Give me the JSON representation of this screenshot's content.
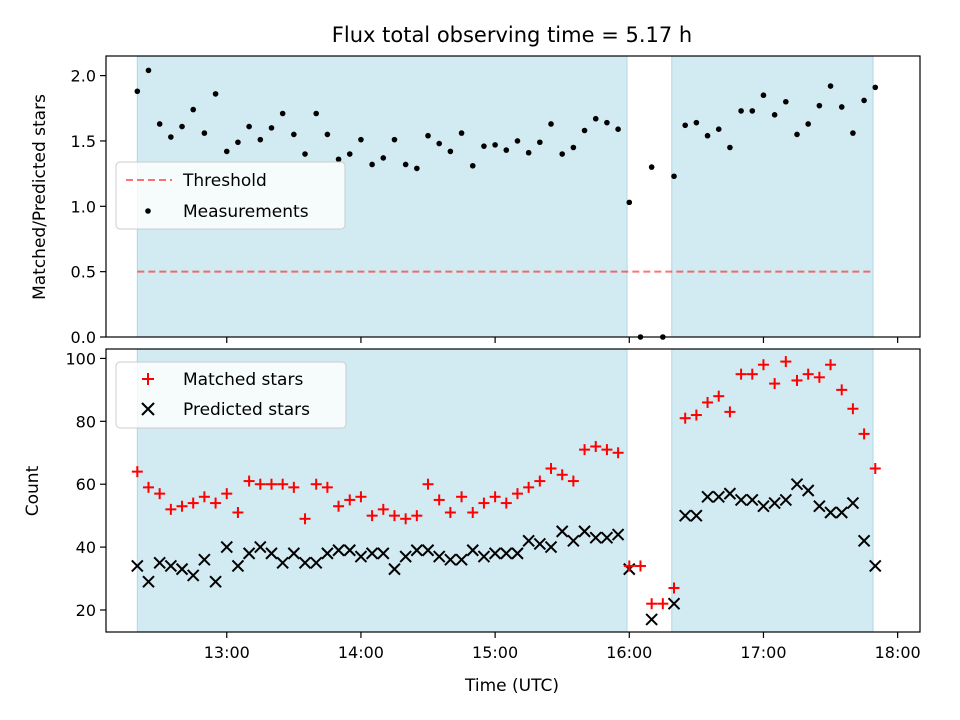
{
  "figure": {
    "title": "Flux total observing time = 5.17 h",
    "xlabel": "Time (UTC)"
  },
  "colors": {
    "observing_span": "#add8e6",
    "threshold": "#ff0000",
    "measurements": "#000000",
    "matched": "#ff0000",
    "predicted": "#000000"
  },
  "chart_data": [
    {
      "type": "scatter",
      "panel": "top",
      "ylabel": "Matched/Predicted stars",
      "xlim": [
        "12:06",
        "18:10"
      ],
      "ylim": [
        0,
        2.15
      ],
      "xticks": [
        "13:00",
        "14:00",
        "15:00",
        "16:00",
        "17:00",
        "18:00"
      ],
      "yticks": [
        "0.0",
        "0.5",
        "1.0",
        "1.5",
        "2.0"
      ],
      "spans": [
        [
          "12:20",
          "15:59"
        ],
        [
          "16:19",
          "17:49"
        ]
      ],
      "threshold": {
        "name": "Threshold",
        "value": 0.5,
        "x_range": [
          "12:20",
          "17:49"
        ]
      },
      "legend_position": "center-left",
      "series": [
        {
          "name": "Measurements",
          "marker": "dot",
          "x": [
            "12:20",
            "12:25",
            "12:30",
            "12:35",
            "12:40",
            "12:45",
            "12:50",
            "12:55",
            "13:00",
            "13:05",
            "13:10",
            "13:15",
            "13:20",
            "13:25",
            "13:30",
            "13:35",
            "13:40",
            "13:45",
            "13:50",
            "13:55",
            "14:00",
            "14:05",
            "14:10",
            "14:15",
            "14:20",
            "14:25",
            "14:30",
            "14:35",
            "14:40",
            "14:45",
            "14:50",
            "14:55",
            "15:00",
            "15:05",
            "15:10",
            "15:15",
            "15:20",
            "15:25",
            "15:30",
            "15:35",
            "15:40",
            "15:45",
            "15:50",
            "15:55",
            "16:00",
            "16:05",
            "16:10",
            "16:15",
            "16:20",
            "16:25",
            "16:30",
            "16:35",
            "16:40",
            "16:45",
            "16:50",
            "16:55",
            "17:00",
            "17:05",
            "17:10",
            "17:15",
            "17:20",
            "17:25",
            "17:30",
            "17:35",
            "17:40",
            "17:45",
            "17:50"
          ],
          "y": [
            1.88,
            2.04,
            1.63,
            1.53,
            1.61,
            1.74,
            1.56,
            1.86,
            1.42,
            1.49,
            1.61,
            1.51,
            1.6,
            1.71,
            1.55,
            1.4,
            1.71,
            1.55,
            1.36,
            1.4,
            1.51,
            1.32,
            1.37,
            1.51,
            1.32,
            1.29,
            1.54,
            1.48,
            1.42,
            1.56,
            1.31,
            1.46,
            1.47,
            1.43,
            1.5,
            1.41,
            1.49,
            1.63,
            1.4,
            1.45,
            1.58,
            1.67,
            1.64,
            1.59,
            1.03,
            0.0,
            1.3,
            0.0,
            1.23,
            1.62,
            1.64,
            1.54,
            1.59,
            1.45,
            1.73,
            1.73,
            1.85,
            1.7,
            1.8,
            1.55,
            1.63,
            1.77,
            1.92,
            1.76,
            1.56,
            1.81,
            1.91
          ]
        }
      ]
    },
    {
      "type": "scatter",
      "panel": "bottom",
      "ylabel": "Count",
      "xlim": [
        "12:06",
        "18:10"
      ],
      "ylim": [
        13,
        103
      ],
      "xticks": [
        "13:00",
        "14:00",
        "15:00",
        "16:00",
        "17:00",
        "18:00"
      ],
      "yticks": [
        "20",
        "40",
        "60",
        "80",
        "100"
      ],
      "spans": [
        [
          "12:20",
          "15:59"
        ],
        [
          "16:19",
          "17:49"
        ]
      ],
      "legend_position": "top-left",
      "x": [
        "12:20",
        "12:25",
        "12:30",
        "12:35",
        "12:40",
        "12:45",
        "12:50",
        "12:55",
        "13:00",
        "13:05",
        "13:10",
        "13:15",
        "13:20",
        "13:25",
        "13:30",
        "13:35",
        "13:40",
        "13:45",
        "13:50",
        "13:55",
        "14:00",
        "14:05",
        "14:10",
        "14:15",
        "14:20",
        "14:25",
        "14:30",
        "14:35",
        "14:40",
        "14:45",
        "14:50",
        "14:55",
        "15:00",
        "15:05",
        "15:10",
        "15:15",
        "15:20",
        "15:25",
        "15:30",
        "15:35",
        "15:40",
        "15:45",
        "15:50",
        "15:55",
        "16:00",
        "16:05",
        "16:10",
        "16:15",
        "16:20",
        "16:25",
        "16:30",
        "16:35",
        "16:40",
        "16:45",
        "16:50",
        "16:55",
        "17:00",
        "17:05",
        "17:10",
        "17:15",
        "17:20",
        "17:25",
        "17:30",
        "17:35",
        "17:40",
        "17:45",
        "17:50"
      ],
      "series": [
        {
          "name": "Matched stars",
          "marker": "plus",
          "y": [
            64,
            59,
            57,
            52,
            53,
            54,
            56,
            54,
            57,
            51,
            61,
            60,
            60,
            60,
            59,
            49,
            60,
            59,
            53,
            55,
            56,
            50,
            52,
            50,
            49,
            50,
            60,
            55,
            51,
            56,
            51,
            54,
            56,
            54,
            57,
            59,
            61,
            65,
            63,
            61,
            71,
            72,
            71,
            70,
            34,
            34,
            22,
            22,
            27,
            81,
            82,
            86,
            88,
            83,
            95,
            95,
            98,
            92,
            99,
            93,
            95,
            94,
            98,
            90,
            84,
            76,
            65
          ]
        },
        {
          "name": "Predicted stars",
          "marker": "x",
          "y": [
            34,
            29,
            35,
            34,
            33,
            31,
            36,
            29,
            40,
            34,
            38,
            40,
            38,
            35,
            38,
            35,
            35,
            38,
            39,
            39,
            37,
            38,
            38,
            33,
            37,
            39,
            39,
            37,
            36,
            36,
            39,
            37,
            38,
            38,
            38,
            42,
            41,
            40,
            45,
            42,
            45,
            43,
            43,
            44,
            33,
            null,
            17,
            null,
            22,
            50,
            50,
            56,
            56,
            57,
            55,
            55,
            53,
            54,
            55,
            60,
            58,
            53,
            51,
            51,
            54,
            42,
            34
          ]
        }
      ]
    }
  ]
}
